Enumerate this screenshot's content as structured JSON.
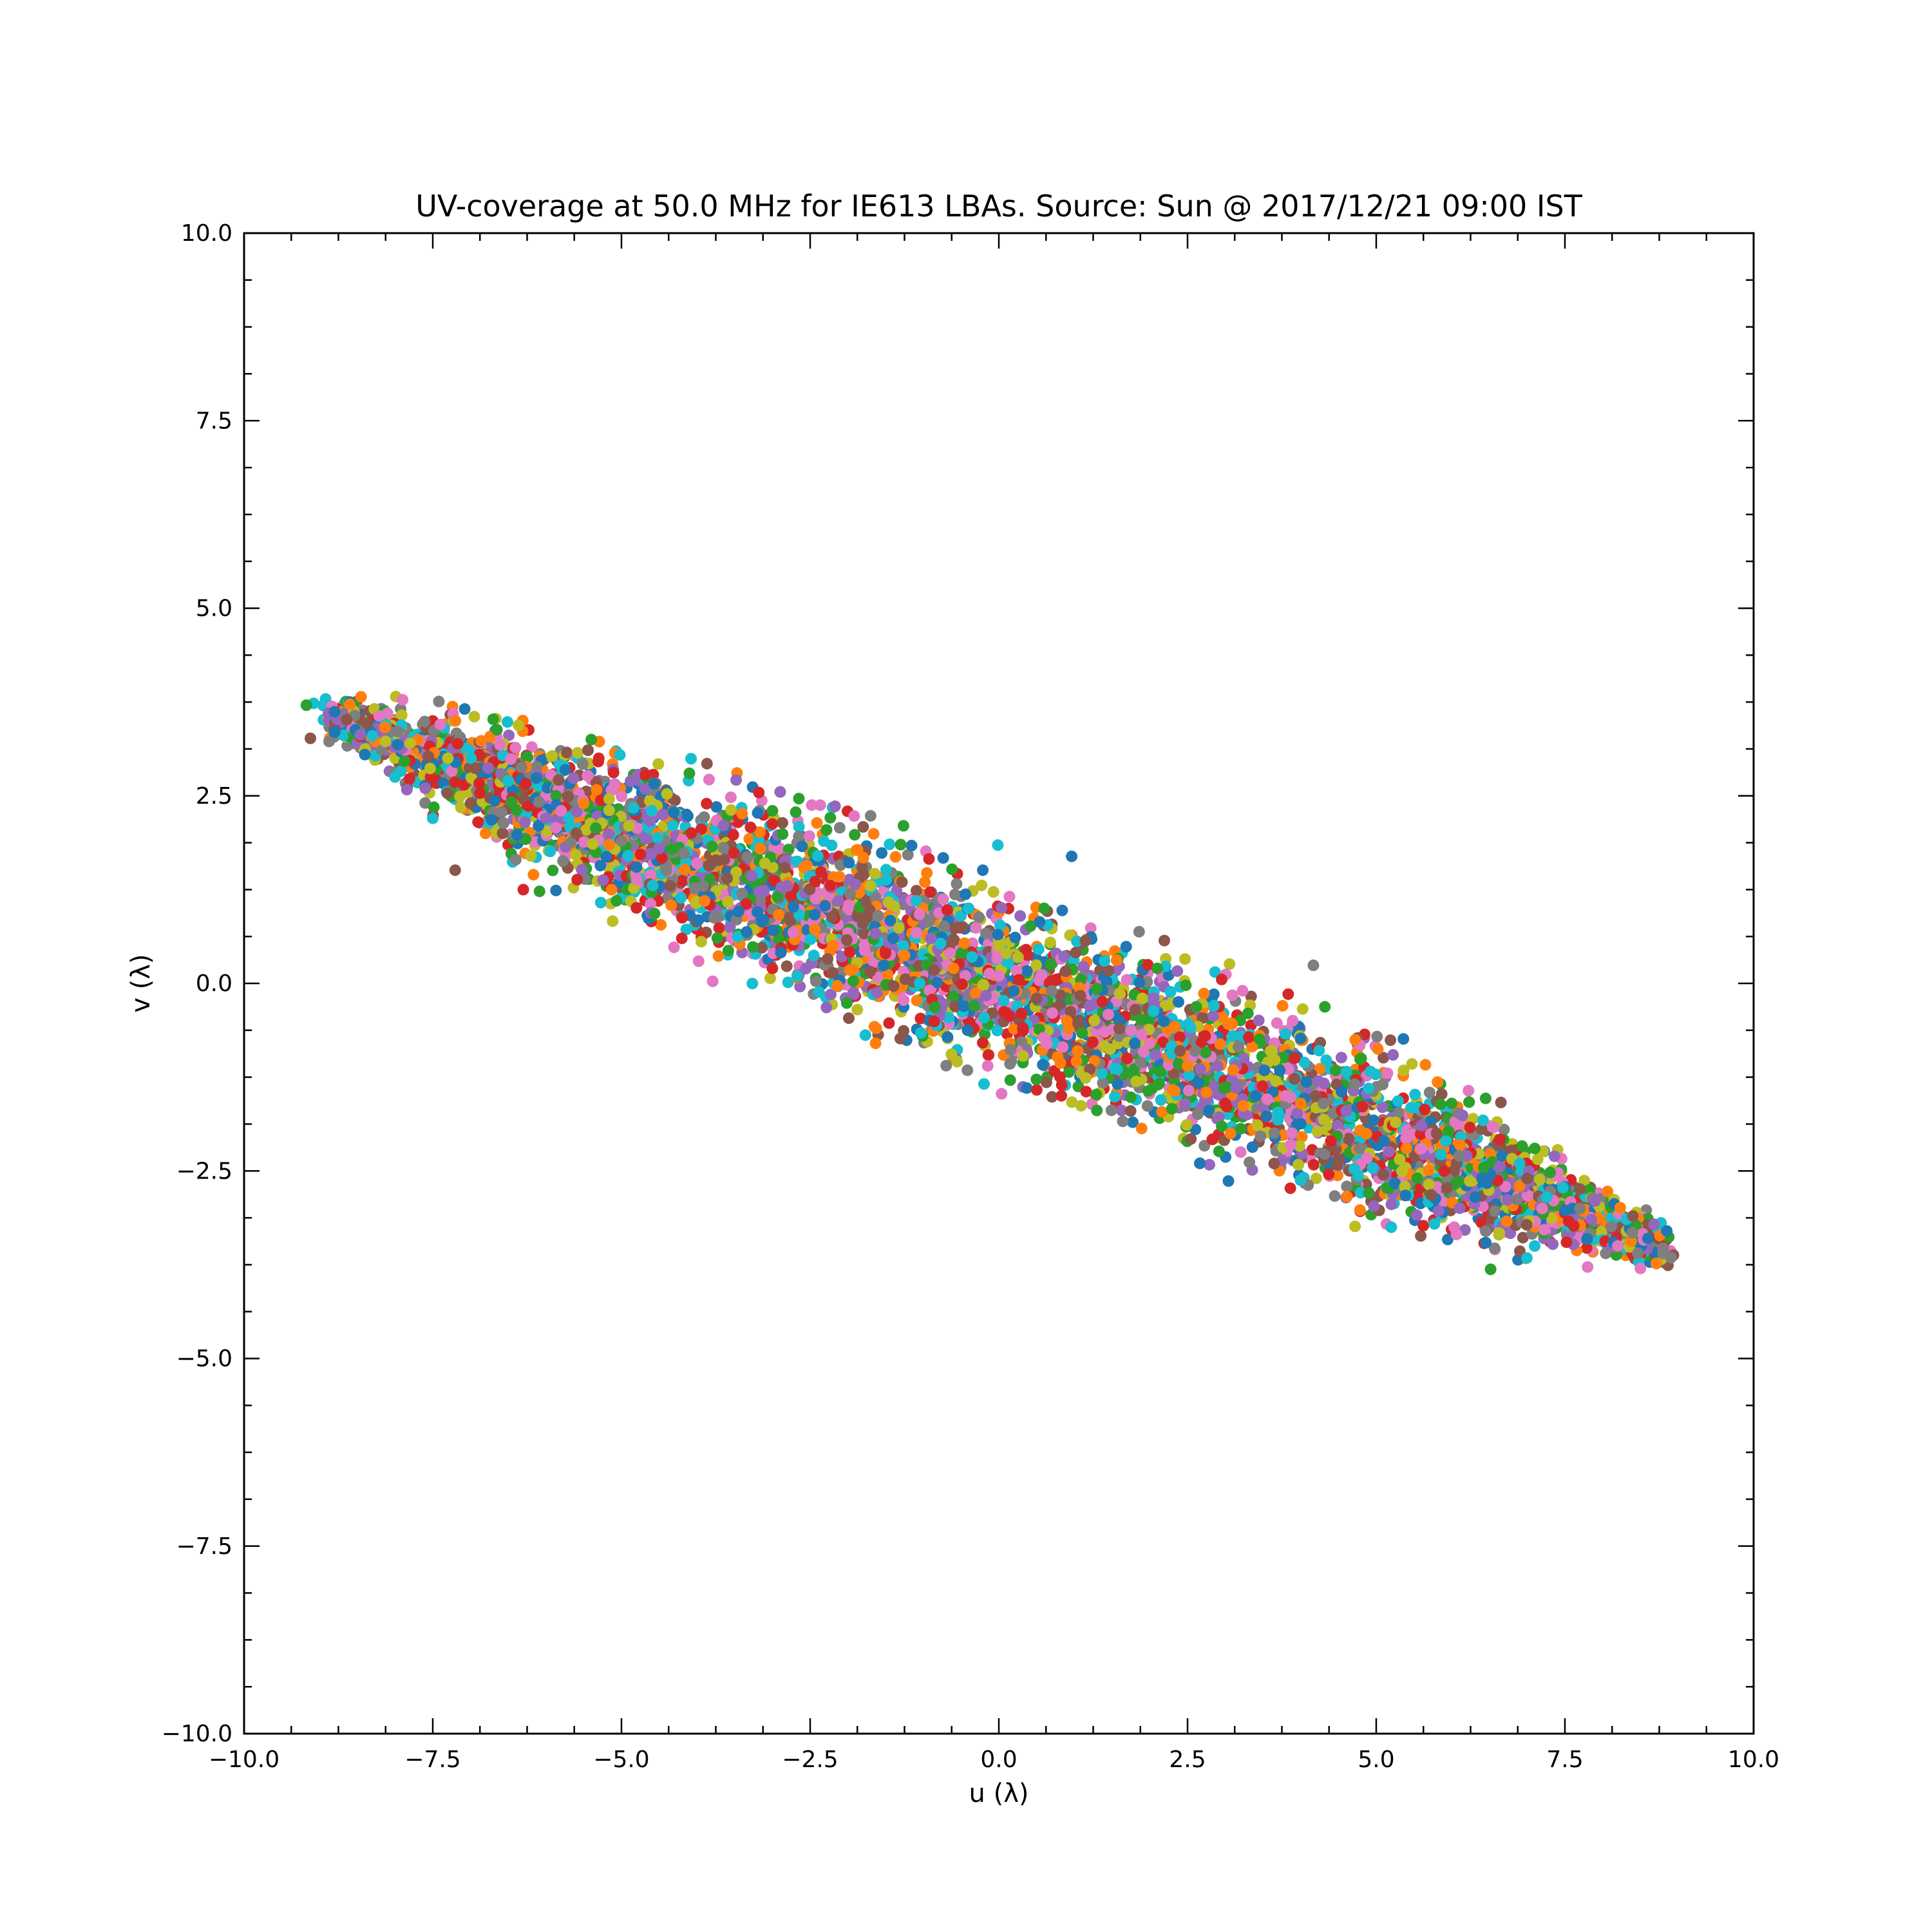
{
  "chart_data": {
    "type": "scatter",
    "title": "UV-coverage at 50.0 MHz for IE613 LBAs. Source: Sun @ 2017/12/21 09:00 IST",
    "xlabel": "u (λ)",
    "ylabel": "v (λ)",
    "xlim": [
      -10.0,
      10.0
    ],
    "ylim": [
      -10.0,
      10.0
    ],
    "xticks": [
      -10.0,
      -7.5,
      -5.0,
      -2.5,
      0.0,
      2.5,
      5.0,
      7.5,
      10.0
    ],
    "yticks": [
      -10.0,
      -7.5,
      -5.0,
      -2.5,
      0.0,
      2.5,
      5.0,
      7.5,
      10.0
    ],
    "xtick_labels": [
      "−10.0",
      "−7.5",
      "−5.0",
      "−2.5",
      "0.0",
      "2.5",
      "5.0",
      "7.5",
      "10.0"
    ],
    "ytick_labels": [
      "−10.0",
      "−7.5",
      "−5.0",
      "−2.5",
      "0.0",
      "2.5",
      "5.0",
      "7.5",
      "10.0"
    ],
    "grid": false,
    "legend": "none",
    "ticks_direction": "in",
    "distribution": {
      "shape": "elongated ellipse of baseline samples",
      "u_range": [
        -8.8,
        8.8
      ],
      "v_range": [
        -3.8,
        3.8
      ],
      "major_axis_slope": -0.4,
      "perpendicular_spread": 0.55,
      "point_count_estimate": 6000
    },
    "colors": [
      "#1f77b4",
      "#ff7f0e",
      "#2ca02c",
      "#d62728",
      "#9467bd",
      "#8c564b",
      "#e377c2",
      "#7f7f7f",
      "#bcbd22",
      "#17becf"
    ],
    "series": [
      {
        "color": "#1f77b4",
        "points": [
          [
            -8.8,
            3.35
          ],
          [
            -8.8,
            3.62
          ],
          [
            -8.6,
            3.75
          ],
          [
            -8.4,
            3.05
          ],
          [
            -7.2,
            2.95
          ],
          [
            -6.1,
            2.1
          ],
          [
            -4.8,
            1.55
          ],
          [
            -3.2,
            0.95
          ],
          [
            -1.4,
            0.6
          ],
          [
            0.2,
            -0.1
          ],
          [
            1.8,
            -0.8
          ],
          [
            3.4,
            -1.5
          ],
          [
            5.1,
            -2.1
          ],
          [
            6.4,
            -2.6
          ],
          [
            7.6,
            -3.0
          ],
          [
            8.6,
            -3.4
          ],
          [
            8.85,
            -3.3
          ]
        ]
      },
      {
        "color": "#ff7f0e",
        "points": [
          [
            -8.6,
            3.72
          ],
          [
            -8.45,
            3.82
          ],
          [
            -7.2,
            3.5
          ],
          [
            -6.8,
            2.0
          ],
          [
            -5.5,
            2.4
          ],
          [
            -3.9,
            1.1
          ],
          [
            -2.2,
            0.5
          ],
          [
            -0.6,
            0.2
          ],
          [
            0.9,
            -0.5
          ],
          [
            2.5,
            -1.1
          ],
          [
            4.0,
            -1.6
          ],
          [
            5.4,
            -2.2
          ],
          [
            6.9,
            -2.7
          ]
        ]
      },
      {
        "color": "#2ca02c",
        "points": [
          [
            -6.7,
            3.52
          ],
          [
            -5.4,
            3.25
          ],
          [
            -4.1,
            2.8
          ],
          [
            -3.0,
            2.3
          ],
          [
            -1.3,
            1.85
          ],
          [
            0.6,
            1.0
          ],
          [
            2.1,
            0.2
          ],
          [
            3.3,
            -0.4
          ],
          [
            4.8,
            -1.0
          ],
          [
            6.0,
            -1.6
          ],
          [
            7.1,
            -2.2
          ]
        ]
      },
      {
        "color": "#d62728",
        "points": [
          [
            -6.9,
            2.15
          ],
          [
            -6.3,
            1.25
          ],
          [
            -5.3,
            3.0
          ],
          [
            -4.2,
            0.6
          ],
          [
            -3.0,
            0.2
          ],
          [
            -1.5,
            0.4
          ],
          [
            0.3,
            -0.4
          ],
          [
            1.7,
            -1.0
          ],
          [
            3.0,
            -1.6
          ],
          [
            4.4,
            -2.1
          ],
          [
            5.9,
            -2.5
          ]
        ]
      },
      {
        "color": "#9467bd",
        "points": [
          [
            -7.6,
            2.6
          ],
          [
            -6.0,
            2.2
          ],
          [
            -4.5,
            1.8
          ],
          [
            -2.8,
            1.3
          ],
          [
            -0.9,
            0.6
          ],
          [
            1.2,
            -0.3
          ],
          [
            2.9,
            -1.1
          ],
          [
            4.6,
            -1.7
          ],
          [
            6.2,
            -2.3
          ],
          [
            7.9,
            -2.9
          ]
        ]
      },
      {
        "color": "#8c564b",
        "points": [
          [
            -7.0,
            2.4
          ],
          [
            -5.6,
            2.0
          ],
          [
            -3.6,
            1.4
          ],
          [
            -1.8,
            0.8
          ],
          [
            0.5,
            -0.2
          ],
          [
            2.4,
            -0.9
          ],
          [
            4.2,
            -1.5
          ],
          [
            5.8,
            -2.0
          ],
          [
            7.0,
            -2.6
          ],
          [
            8.4,
            -3.1
          ]
        ]
      },
      {
        "color": "#e377c2",
        "points": [
          [
            -8.1,
            3.6
          ],
          [
            -7.9,
            3.78
          ],
          [
            -7.4,
            3.45
          ],
          [
            -5.8,
            2.3
          ],
          [
            -4.0,
            1.6
          ],
          [
            -2.0,
            1.0
          ],
          [
            0.0,
            0.1
          ],
          [
            2.0,
            -0.8
          ],
          [
            3.8,
            -1.5
          ],
          [
            5.6,
            -2.2
          ],
          [
            7.2,
            -3.0
          ],
          [
            8.2,
            -3.5
          ],
          [
            8.5,
            -3.8
          ],
          [
            7.8,
            -3.78
          ]
        ]
      },
      {
        "color": "#7f7f7f",
        "points": [
          [
            -6.4,
            1.65
          ],
          [
            -5.0,
            1.9
          ],
          [
            -3.4,
            1.2
          ],
          [
            -1.6,
            0.9
          ],
          [
            0.7,
            -0.1
          ],
          [
            2.6,
            -0.9
          ],
          [
            4.3,
            -1.6
          ],
          [
            6.1,
            -2.3
          ],
          [
            7.7,
            -3.0
          ],
          [
            8.8,
            -3.6
          ]
        ]
      },
      {
        "color": "#bcbd22",
        "points": [
          [
            -7.8,
            3.2
          ],
          [
            -7.3,
            3.0
          ],
          [
            -6.2,
            1.7
          ],
          [
            -4.9,
            2.1
          ],
          [
            -3.1,
            1.6
          ],
          [
            -1.7,
            1.3
          ],
          [
            0.1,
            0.4
          ],
          [
            1.9,
            -0.2
          ],
          [
            3.6,
            -0.9
          ]
        ]
      },
      {
        "color": "#17becf",
        "points": [
          [
            -8.3,
            3.3
          ],
          [
            -8.0,
            2.75
          ],
          [
            -7.5,
            2.2
          ],
          [
            -6.5,
            2.7
          ],
          [
            -4.6,
            2.3
          ],
          [
            -2.4,
            1.7
          ],
          [
            -0.4,
            1.0
          ],
          [
            1.4,
            0.3
          ],
          [
            3.1,
            -0.7
          ],
          [
            4.9,
            -1.4
          ],
          [
            5.2,
            -3.25
          ],
          [
            6.9,
            -2.4
          ],
          [
            7.1,
            -3.5
          ]
        ]
      }
    ]
  }
}
